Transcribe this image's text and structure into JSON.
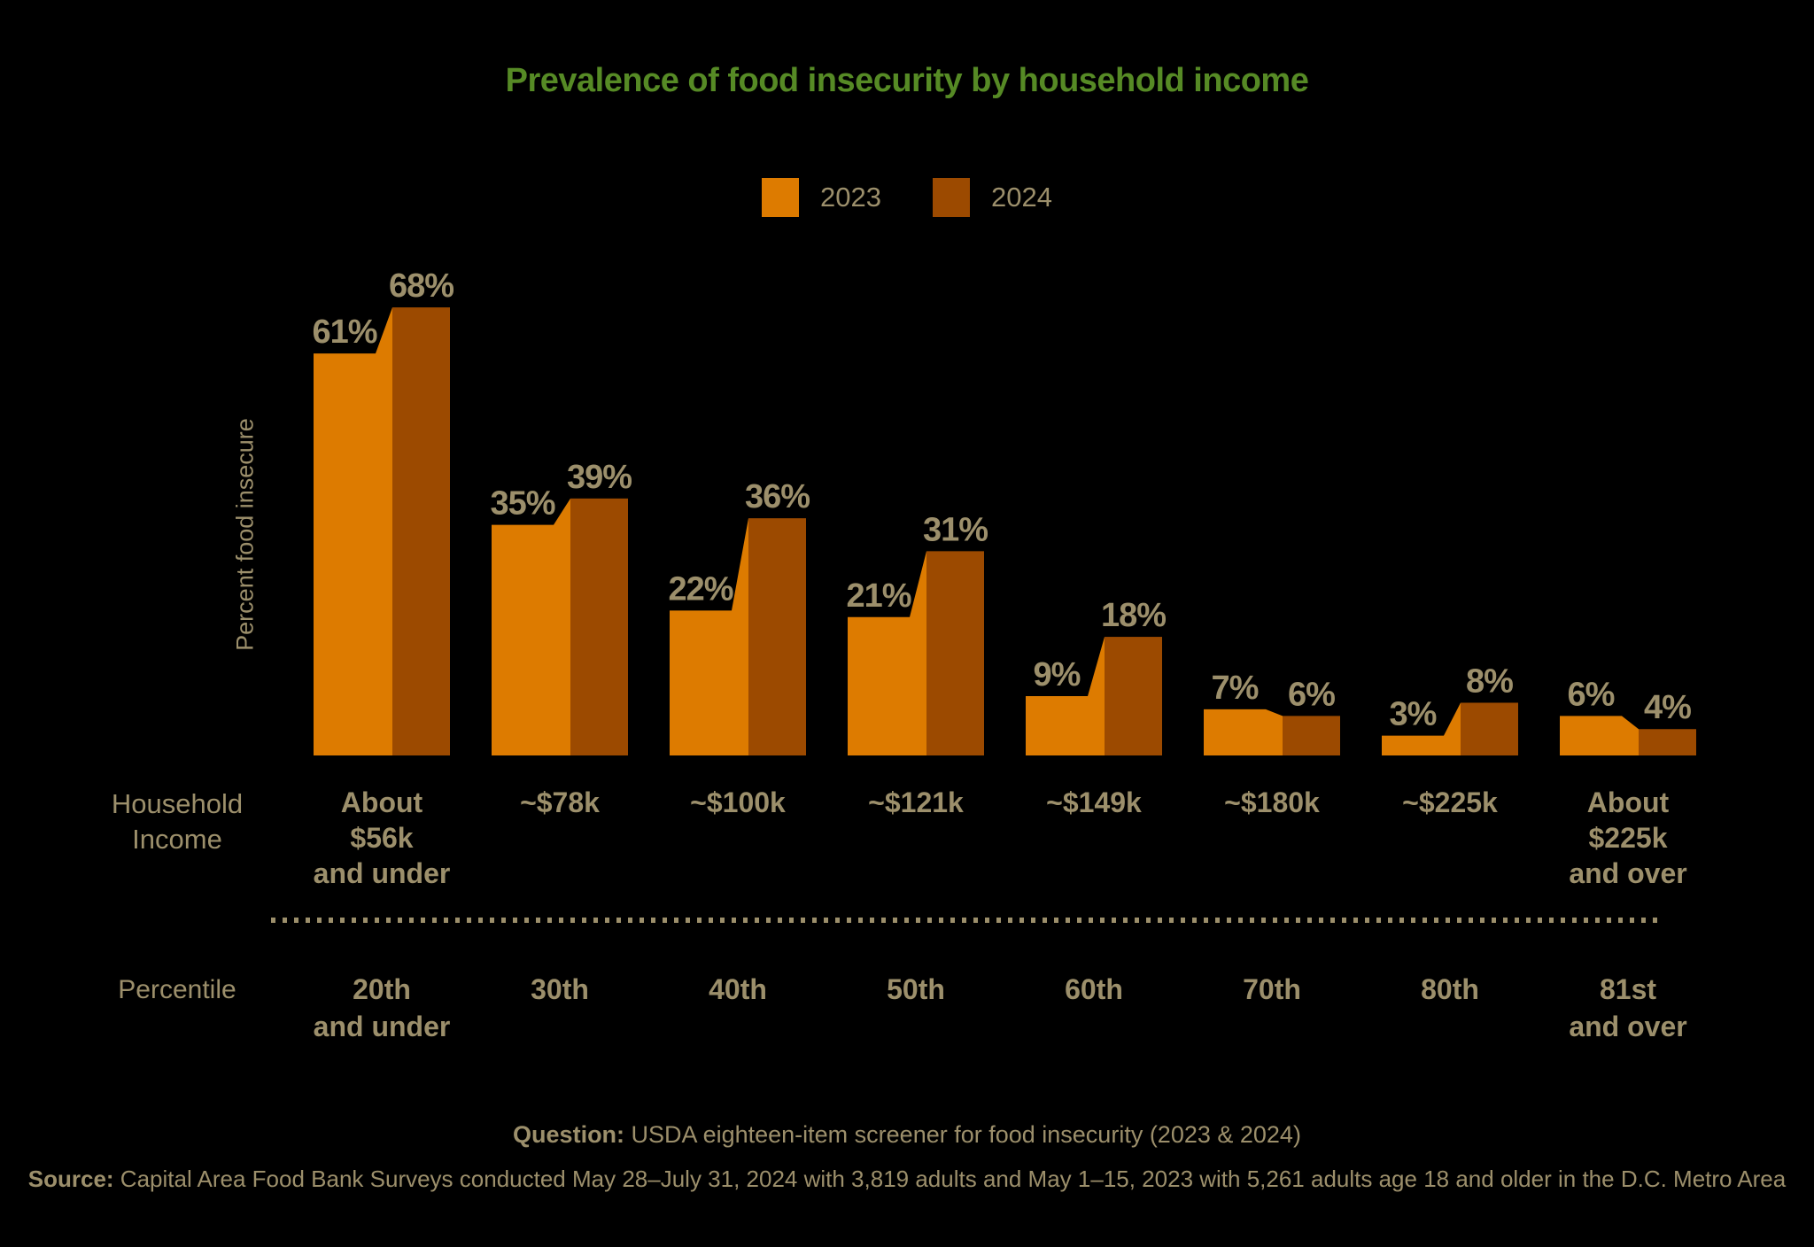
{
  "title": "Prevalence of food insecurity by household income",
  "legend": {
    "items": [
      {
        "label": "2023",
        "color": "#DD7B00"
      },
      {
        "label": "2024",
        "color": "#9C4A00"
      }
    ]
  },
  "colors": {
    "background": "#000000",
    "title_green": "#568A25",
    "text_tan": "#9C8F6B",
    "bar_2023": "#DD7B00",
    "bar_2024": "#9C4A00"
  },
  "rows": {
    "income_header": "Household\nIncome",
    "percentile_header": "Percentile"
  },
  "chart_data": {
    "type": "bar",
    "title": "Prevalence of food insecurity by household income",
    "ylabel": "Percent food insecure",
    "xlabel": "Household Income",
    "legend_position": "top-center",
    "grid": false,
    "ylim": [
      0,
      70
    ],
    "value_suffix": "%",
    "categories_income": [
      [
        "About",
        "$56k",
        "and under"
      ],
      [
        "~$78k"
      ],
      [
        "~$100k"
      ],
      [
        "~$121k"
      ],
      [
        "~$149k"
      ],
      [
        "~$180k"
      ],
      [
        "~$225k"
      ],
      [
        "About",
        "$225k",
        "and over"
      ]
    ],
    "categories_percentile": [
      [
        "20th",
        "and under"
      ],
      [
        "30th"
      ],
      [
        "40th"
      ],
      [
        "50th"
      ],
      [
        "60th"
      ],
      [
        "70th"
      ],
      [
        "80th"
      ],
      [
        "81st",
        "and over"
      ]
    ],
    "series": [
      {
        "name": "2023",
        "color": "#DD7B00",
        "values": [
          61,
          35,
          22,
          21,
          9,
          7,
          3,
          6
        ]
      },
      {
        "name": "2024",
        "color": "#9C4A00",
        "values": [
          68,
          39,
          36,
          31,
          18,
          6,
          8,
          4
        ]
      }
    ]
  },
  "footer": {
    "question_label": "Question:",
    "question_text": " USDA eighteen-item screener for food insecurity (2023 & 2024)",
    "source_label": "Source:",
    "source_text": " Capital Area Food Bank Surveys conducted May 28–July 31, 2024 with 3,819 adults and May 1–15, 2023 with 5,261 adults age 18 and older in the D.C. Metro Area"
  }
}
